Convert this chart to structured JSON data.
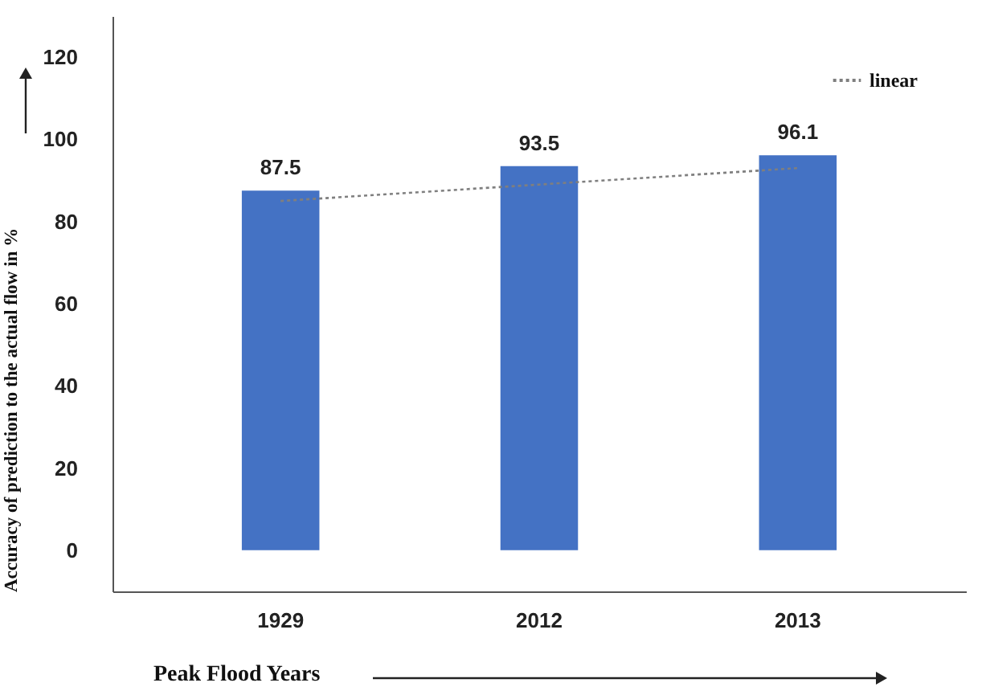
{
  "chart_data": {
    "type": "bar",
    "xlabel": "Peak Flood Years",
    "ylabel": "Accuracy of prediction to the actual flow in %",
    "categories": [
      "1929",
      "2012",
      "2013"
    ],
    "series": [
      {
        "color": "#4472c4",
        "values": [
          87.5,
          93.5,
          96.1
        ],
        "value_labels": [
          "87.5",
          "93.5",
          "96.1"
        ]
      },
      {
        "type": "line",
        "name": "linear",
        "color": "#7f7f7f",
        "line_style": "dotted",
        "values": [
          85,
          89,
          93
        ]
      }
    ],
    "ylim": [
      -10,
      130
    ],
    "yticks": [
      0,
      20,
      40,
      60,
      80,
      100,
      120
    ],
    "legend": "top right"
  }
}
